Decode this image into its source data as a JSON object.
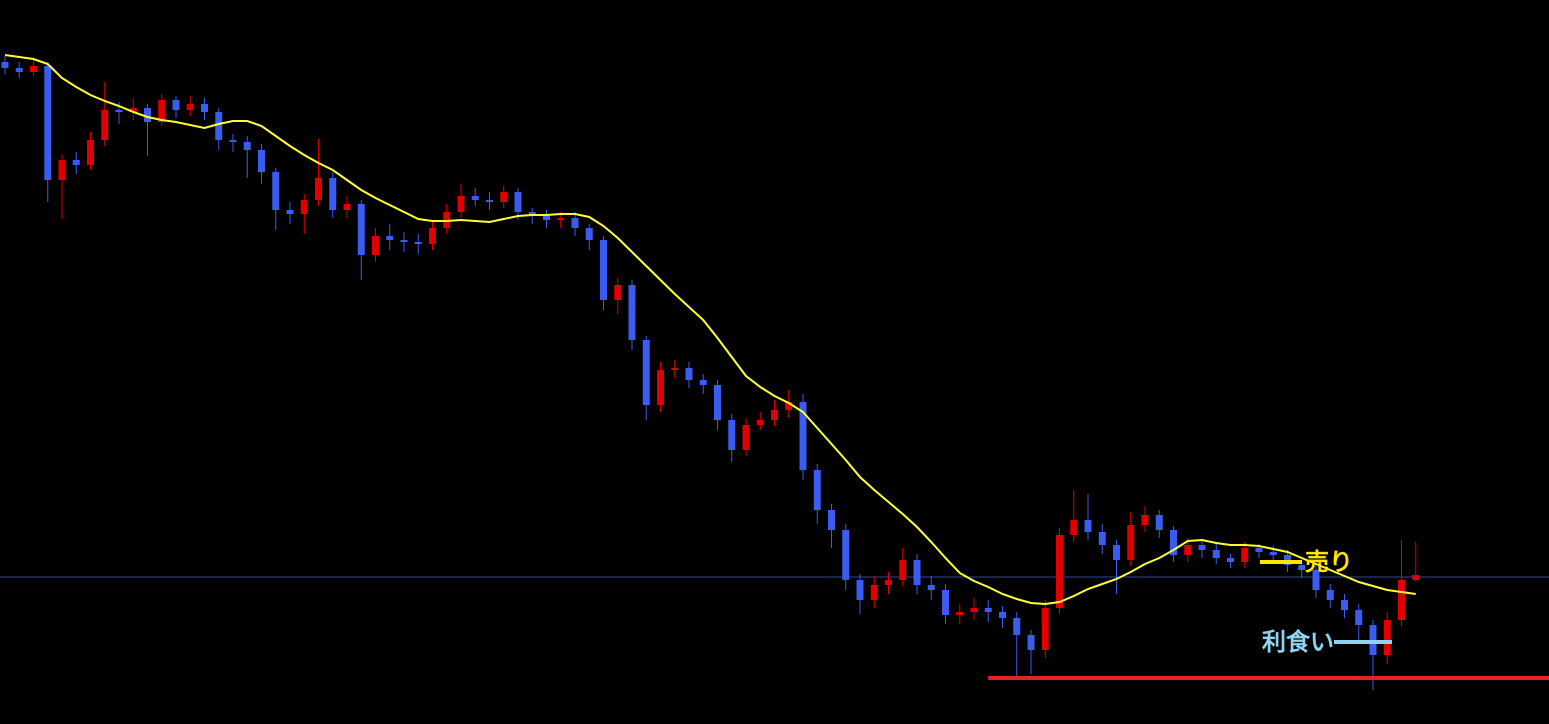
{
  "chart_data": {
    "type": "candlestick",
    "ylim": [
      0,
      724
    ],
    "up_color": "#e00000",
    "down_color": "#3a5cf0",
    "open": [
      662,
      656,
      652,
      658,
      544,
      564,
      559,
      584,
      614,
      612,
      616,
      602,
      624,
      614,
      620,
      612,
      584,
      582,
      574,
      552,
      514,
      510,
      524,
      546,
      514,
      520,
      469,
      488,
      484,
      482,
      480,
      496,
      512,
      528,
      524,
      522,
      532,
      512,
      508,
      504,
      506,
      496,
      484,
      424,
      439,
      384,
      319,
      354,
      356,
      344,
      339,
      304,
      274,
      299,
      304,
      314,
      322,
      254,
      214,
      194,
      144,
      124,
      139,
      144,
      164,
      139,
      134,
      109,
      112,
      116,
      112,
      106,
      89,
      74,
      116,
      189,
      204,
      192,
      179,
      164,
      199,
      209,
      194,
      169,
      179,
      174,
      166,
      162,
      176,
      172,
      169,
      159,
      154,
      134,
      124,
      114,
      99,
      69,
      104,
      144
    ],
    "high": [
      668,
      662,
      664,
      662,
      570,
      572,
      592,
      642,
      622,
      626,
      620,
      630,
      628,
      628,
      626,
      616,
      590,
      588,
      580,
      556,
      522,
      530,
      585,
      552,
      528,
      524,
      496,
      500,
      492,
      490,
      504,
      520,
      540,
      536,
      532,
      538,
      536,
      516,
      514,
      512,
      512,
      500,
      488,
      446,
      444,
      388,
      362,
      364,
      362,
      350,
      344,
      310,
      306,
      312,
      324,
      334,
      330,
      260,
      220,
      200,
      150,
      148,
      152,
      176,
      170,
      148,
      140,
      120,
      126,
      124,
      118,
      112,
      94,
      124,
      196,
      234,
      230,
      200,
      184,
      212,
      218,
      214,
      198,
      186,
      184,
      180,
      170,
      182,
      180,
      178,
      174,
      164,
      158,
      140,
      130,
      120,
      104,
      112,
      184,
      182
    ],
    "low": [
      650,
      646,
      648,
      522,
      505,
      550,
      554,
      578,
      600,
      604,
      568,
      598,
      606,
      608,
      604,
      574,
      572,
      546,
      540,
      494,
      500,
      490,
      518,
      506,
      506,
      444,
      462,
      474,
      472,
      470,
      474,
      490,
      506,
      518,
      514,
      516,
      504,
      500,
      496,
      496,
      488,
      474,
      414,
      410,
      374,
      304,
      312,
      346,
      336,
      330,
      294,
      262,
      268,
      294,
      298,
      306,
      244,
      200,
      176,
      134,
      110,
      116,
      130,
      138,
      130,
      124,
      100,
      100,
      104,
      102,
      96,
      48,
      50,
      66,
      110,
      182,
      184,
      170,
      130,
      158,
      192,
      186,
      162,
      162,
      166,
      160,
      156,
      156,
      166,
      162,
      152,
      146,
      126,
      116,
      106,
      82,
      34,
      60,
      98,
      142
    ],
    "close": [
      656,
      652,
      658,
      544,
      564,
      559,
      584,
      614,
      612,
      616,
      602,
      624,
      614,
      620,
      612,
      584,
      582,
      574,
      552,
      514,
      510,
      524,
      546,
      514,
      520,
      469,
      488,
      484,
      482,
      480,
      496,
      512,
      528,
      524,
      522,
      532,
      512,
      508,
      504,
      506,
      496,
      484,
      424,
      439,
      384,
      319,
      354,
      356,
      344,
      339,
      304,
      274,
      299,
      304,
      314,
      322,
      254,
      214,
      194,
      144,
      124,
      139,
      144,
      164,
      139,
      134,
      109,
      112,
      116,
      112,
      106,
      89,
      74,
      116,
      189,
      204,
      192,
      179,
      164,
      199,
      209,
      194,
      169,
      179,
      174,
      166,
      162,
      176,
      172,
      169,
      159,
      154,
      134,
      124,
      114,
      99,
      69,
      104,
      144,
      149
    ],
    "ma": {
      "color": "#ffff33",
      "values": [
        669,
        667,
        665,
        660,
        646,
        637,
        629,
        623,
        618,
        612,
        607,
        604,
        602,
        599,
        596,
        600,
        603,
        603,
        598,
        588,
        578,
        569,
        561,
        554,
        544,
        534,
        526,
        519,
        512,
        505,
        503,
        503,
        504,
        503,
        502,
        505,
        508,
        509,
        509,
        510,
        510,
        507,
        498,
        486,
        472,
        458,
        444,
        430,
        417,
        404,
        386,
        367,
        348,
        337,
        328,
        321,
        312,
        296,
        280,
        264,
        247,
        234,
        222,
        210,
        197,
        182,
        166,
        151,
        143,
        137,
        130,
        125,
        121,
        120,
        122,
        128,
        135,
        140,
        145,
        152,
        160,
        166,
        174,
        183,
        184,
        181,
        179,
        179,
        178,
        175,
        172,
        166,
        160,
        154,
        148,
        142,
        138,
        134,
        132,
        130
      ]
    },
    "hlines": [
      {
        "value": 147,
        "color": "#3344aa"
      },
      {
        "value": 46,
        "color": "#e8202a",
        "from_index": 69
      }
    ],
    "annotations": [
      {
        "text": "売り",
        "color": "#ffe400"
      },
      {
        "text": "利食い",
        "color": "#8fd3f0"
      }
    ]
  }
}
